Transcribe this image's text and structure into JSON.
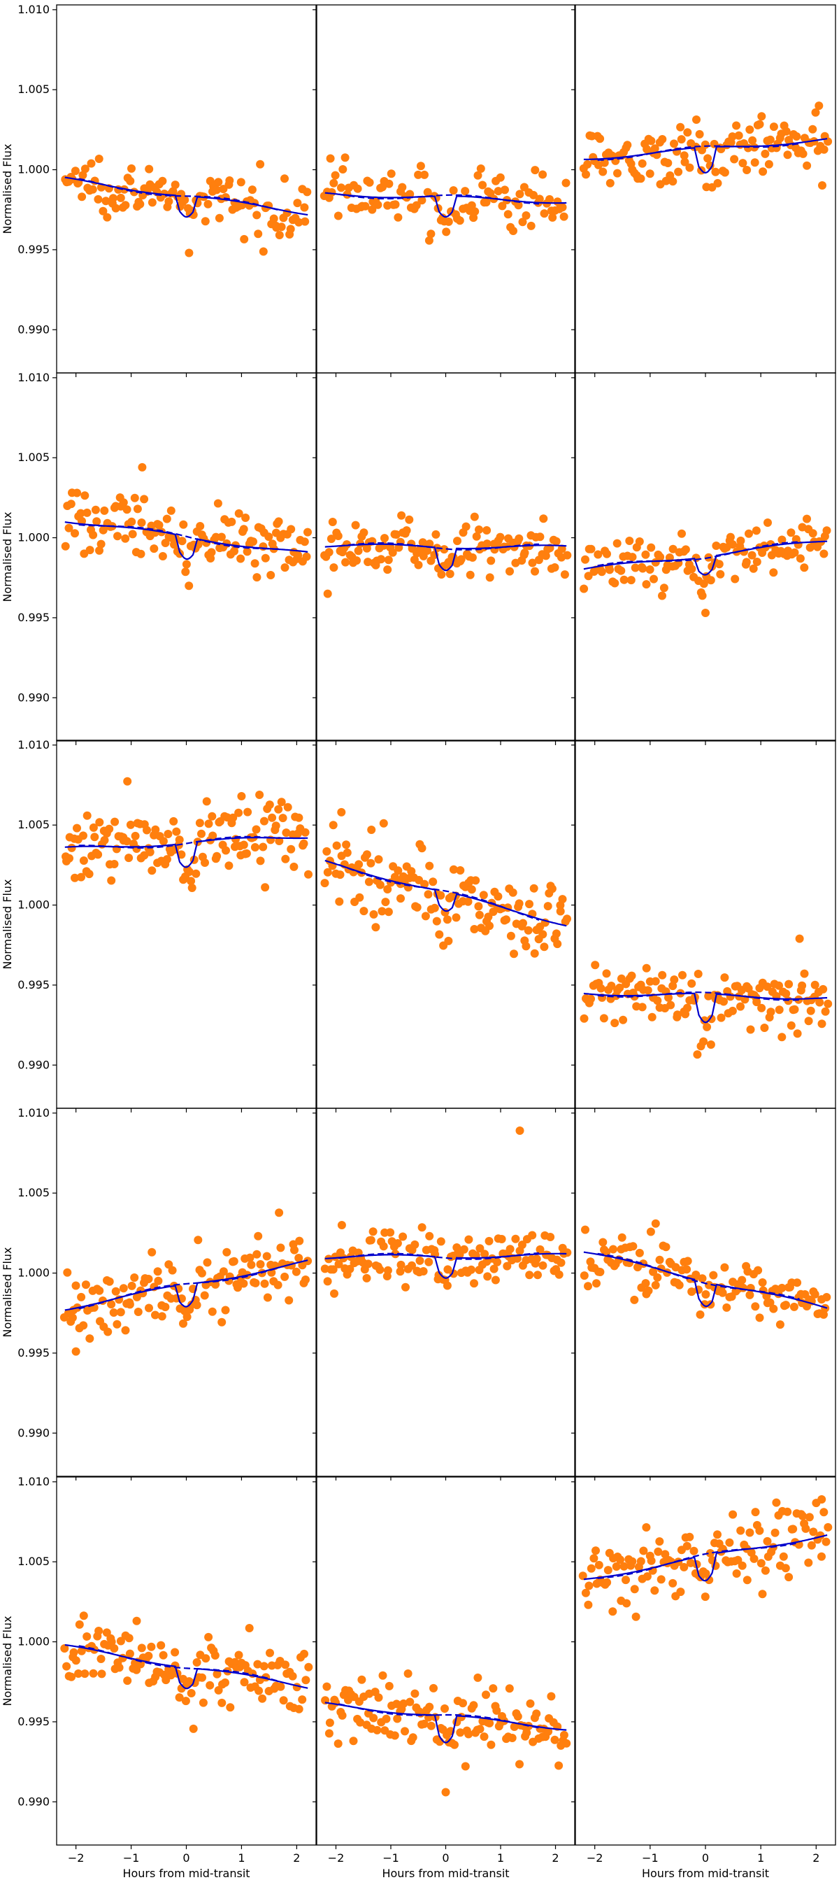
{
  "chart_data": {
    "type": "scatter",
    "layout": "5x3 grid of light-curve panels with shared axes",
    "xlabel": "Hours from mid-transit",
    "ylabel": "Normalised Flux",
    "xlim": [
      -2.35,
      2.35
    ],
    "ylim": [
      0.9873,
      1.0103
    ],
    "xticks": [
      -2,
      -1,
      0,
      1,
      2
    ],
    "xtick_labels": [
      "−2",
      "−1",
      "0",
      "1",
      "2"
    ],
    "yticks": [
      0.99,
      0.995,
      1.0,
      1.005,
      1.01
    ],
    "ytick_labels": [
      "0.990",
      "0.995",
      "1.000",
      "1.005",
      "1.010"
    ],
    "colors": {
      "data_points": "#ff7f0e",
      "model": "#0000cc",
      "frame": "#000000"
    },
    "series_legend": [
      {
        "name": "data",
        "style": "orange filled circles"
      },
      {
        "name": "model with transit",
        "style": "solid blue line"
      },
      {
        "name": "baseline trend",
        "style": "dashed blue line"
      }
    ],
    "panels": [
      {
        "row": 0,
        "col": 0,
        "baseline_start": 0.9994,
        "baseline_end": 0.9973,
        "transit_depth": 0.0013,
        "scatter": 0.0008,
        "npoints": 120,
        "outliers": [
          [
            0.05,
            0.9948
          ]
        ]
      },
      {
        "row": 0,
        "col": 1,
        "baseline_start": 0.9985,
        "baseline_end": 0.998,
        "transit_depth": 0.0013,
        "scatter": 0.0009,
        "npoints": 110,
        "outliers": [
          [
            -2.1,
            1.0007
          ]
        ]
      },
      {
        "row": 0,
        "col": 2,
        "baseline_start": 1.0007,
        "baseline_end": 1.0019,
        "transit_depth": 0.0016,
        "scatter": 0.001,
        "npoints": 130,
        "outliers": [
          [
            2.05,
            1.004
          ]
        ]
      },
      {
        "row": 1,
        "col": 0,
        "baseline_start": 1.0011,
        "baseline_end": 0.999,
        "transit_depth": 0.0014,
        "scatter": 0.001,
        "npoints": 130,
        "outliers": [
          [
            -0.8,
            1.0044
          ]
        ]
      },
      {
        "row": 1,
        "col": 1,
        "baseline_start": 0.9995,
        "baseline_end": 0.9994,
        "transit_depth": 0.0014,
        "scatter": 0.0008,
        "npoints": 130,
        "outliers": [
          [
            -2.15,
            0.9965
          ]
        ]
      },
      {
        "row": 1,
        "col": 2,
        "baseline_start": 0.998,
        "baseline_end": 0.9998,
        "transit_depth": 0.0011,
        "scatter": 0.0008,
        "npoints": 120,
        "outliers": [
          [
            0.0,
            0.9953
          ]
        ]
      },
      {
        "row": 2,
        "col": 0,
        "baseline_start": 1.0035,
        "baseline_end": 1.0043,
        "transit_depth": 0.0015,
        "scatter": 0.0011,
        "npoints": 140,
        "outliers": [
          [
            1.0,
            1.0068
          ]
        ]
      },
      {
        "row": 2,
        "col": 1,
        "baseline_start": 1.0027,
        "baseline_end": 0.9988,
        "transit_depth": 0.0012,
        "scatter": 0.0012,
        "npoints": 140,
        "outliers": [
          [
            -1.9,
            1.0058
          ]
        ]
      },
      {
        "row": 2,
        "col": 2,
        "baseline_start": 0.9945,
        "baseline_end": 0.9942,
        "transit_depth": 0.0018,
        "scatter": 0.0009,
        "npoints": 130,
        "outliers": [
          [
            1.7,
            0.9979
          ]
        ]
      },
      {
        "row": 3,
        "col": 0,
        "baseline_start": 0.9978,
        "baseline_end": 1.0007,
        "transit_depth": 0.0014,
        "scatter": 0.001,
        "npoints": 130,
        "outliers": [
          [
            -2.0,
            0.9951
          ]
        ]
      },
      {
        "row": 3,
        "col": 1,
        "baseline_start": 1.001,
        "baseline_end": 1.0011,
        "transit_depth": 0.0013,
        "scatter": 0.0009,
        "npoints": 130,
        "outliers": [
          [
            1.35,
            1.0089
          ]
        ]
      },
      {
        "row": 3,
        "col": 2,
        "baseline_start": 1.0013,
        "baseline_end": 0.9978,
        "transit_depth": 0.0015,
        "scatter": 0.001,
        "npoints": 120,
        "outliers": [
          [
            -0.9,
            1.0031
          ]
        ]
      },
      {
        "row": 4,
        "col": 0,
        "baseline_start": 0.9997,
        "baseline_end": 0.9972,
        "transit_depth": 0.0013,
        "scatter": 0.001,
        "npoints": 130,
        "outliers": [
          [
            -0.9,
            1.0013
          ]
        ]
      },
      {
        "row": 4,
        "col": 1,
        "baseline_start": 0.9961,
        "baseline_end": 0.9946,
        "transit_depth": 0.0017,
        "scatter": 0.0011,
        "npoints": 130,
        "outliers": [
          [
            0.0,
            0.9906
          ]
        ]
      },
      {
        "row": 4,
        "col": 2,
        "baseline_start": 1.0039,
        "baseline_end": 1.0067,
        "transit_depth": 0.0016,
        "scatter": 0.0011,
        "npoints": 130,
        "outliers": [
          [
            2.1,
            1.0089
          ]
        ]
      }
    ]
  }
}
